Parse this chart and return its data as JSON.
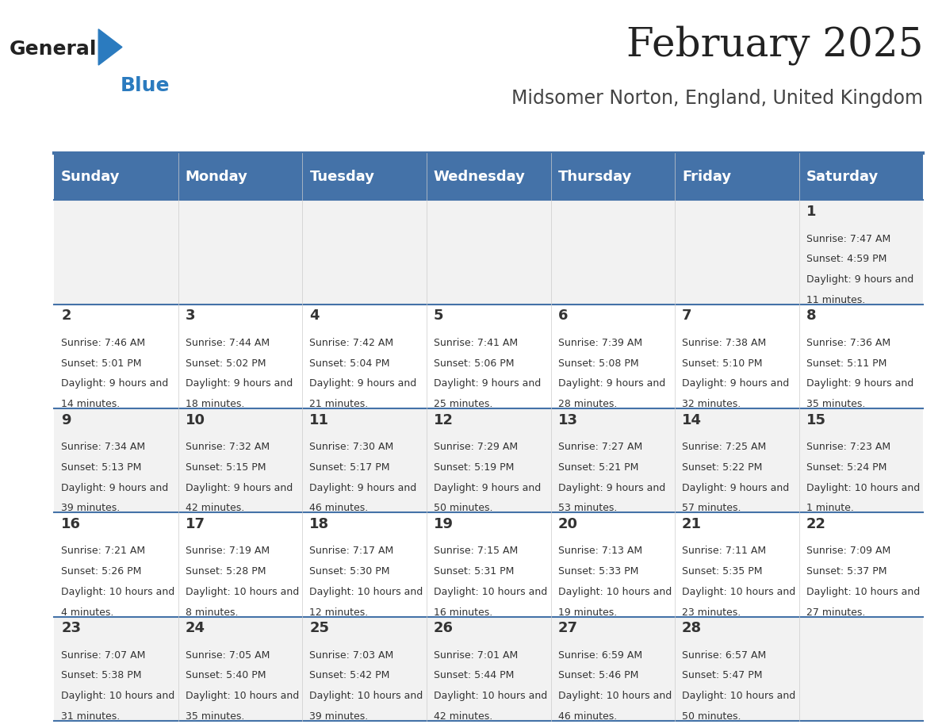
{
  "title": "February 2025",
  "subtitle": "Midsomer Norton, England, United Kingdom",
  "header_color": "#4472a8",
  "header_text_color": "#ffffff",
  "day_names": [
    "Sunday",
    "Monday",
    "Tuesday",
    "Wednesday",
    "Thursday",
    "Friday",
    "Saturday"
  ],
  "row_colors": [
    "#f2f2f2",
    "#ffffff"
  ],
  "divider_color": "#4472a8",
  "text_color": "#333333",
  "title_color": "#222222",
  "subtitle_color": "#444444",
  "logo_general_color": "#222222",
  "logo_blue_color": "#2b7bbf",
  "calendar_data": [
    [
      {
        "day": "",
        "sunrise": "",
        "sunset": "",
        "daylight": ""
      },
      {
        "day": "",
        "sunrise": "",
        "sunset": "",
        "daylight": ""
      },
      {
        "day": "",
        "sunrise": "",
        "sunset": "",
        "daylight": ""
      },
      {
        "day": "",
        "sunrise": "",
        "sunset": "",
        "daylight": ""
      },
      {
        "day": "",
        "sunrise": "",
        "sunset": "",
        "daylight": ""
      },
      {
        "day": "",
        "sunrise": "",
        "sunset": "",
        "daylight": ""
      },
      {
        "day": "1",
        "sunrise": "7:47 AM",
        "sunset": "4:59 PM",
        "daylight": "9 hours and 11 minutes."
      }
    ],
    [
      {
        "day": "2",
        "sunrise": "7:46 AM",
        "sunset": "5:01 PM",
        "daylight": "9 hours and 14 minutes."
      },
      {
        "day": "3",
        "sunrise": "7:44 AM",
        "sunset": "5:02 PM",
        "daylight": "9 hours and 18 minutes."
      },
      {
        "day": "4",
        "sunrise": "7:42 AM",
        "sunset": "5:04 PM",
        "daylight": "9 hours and 21 minutes."
      },
      {
        "day": "5",
        "sunrise": "7:41 AM",
        "sunset": "5:06 PM",
        "daylight": "9 hours and 25 minutes."
      },
      {
        "day": "6",
        "sunrise": "7:39 AM",
        "sunset": "5:08 PM",
        "daylight": "9 hours and 28 minutes."
      },
      {
        "day": "7",
        "sunrise": "7:38 AM",
        "sunset": "5:10 PM",
        "daylight": "9 hours and 32 minutes."
      },
      {
        "day": "8",
        "sunrise": "7:36 AM",
        "sunset": "5:11 PM",
        "daylight": "9 hours and 35 minutes."
      }
    ],
    [
      {
        "day": "9",
        "sunrise": "7:34 AM",
        "sunset": "5:13 PM",
        "daylight": "9 hours and 39 minutes."
      },
      {
        "day": "10",
        "sunrise": "7:32 AM",
        "sunset": "5:15 PM",
        "daylight": "9 hours and 42 minutes."
      },
      {
        "day": "11",
        "sunrise": "7:30 AM",
        "sunset": "5:17 PM",
        "daylight": "9 hours and 46 minutes."
      },
      {
        "day": "12",
        "sunrise": "7:29 AM",
        "sunset": "5:19 PM",
        "daylight": "9 hours and 50 minutes."
      },
      {
        "day": "13",
        "sunrise": "7:27 AM",
        "sunset": "5:21 PM",
        "daylight": "9 hours and 53 minutes."
      },
      {
        "day": "14",
        "sunrise": "7:25 AM",
        "sunset": "5:22 PM",
        "daylight": "9 hours and 57 minutes."
      },
      {
        "day": "15",
        "sunrise": "7:23 AM",
        "sunset": "5:24 PM",
        "daylight": "10 hours and 1 minute."
      }
    ],
    [
      {
        "day": "16",
        "sunrise": "7:21 AM",
        "sunset": "5:26 PM",
        "daylight": "10 hours and 4 minutes."
      },
      {
        "day": "17",
        "sunrise": "7:19 AM",
        "sunset": "5:28 PM",
        "daylight": "10 hours and 8 minutes."
      },
      {
        "day": "18",
        "sunrise": "7:17 AM",
        "sunset": "5:30 PM",
        "daylight": "10 hours and 12 minutes."
      },
      {
        "day": "19",
        "sunrise": "7:15 AM",
        "sunset": "5:31 PM",
        "daylight": "10 hours and 16 minutes."
      },
      {
        "day": "20",
        "sunrise": "7:13 AM",
        "sunset": "5:33 PM",
        "daylight": "10 hours and 19 minutes."
      },
      {
        "day": "21",
        "sunrise": "7:11 AM",
        "sunset": "5:35 PM",
        "daylight": "10 hours and 23 minutes."
      },
      {
        "day": "22",
        "sunrise": "7:09 AM",
        "sunset": "5:37 PM",
        "daylight": "10 hours and 27 minutes."
      }
    ],
    [
      {
        "day": "23",
        "sunrise": "7:07 AM",
        "sunset": "5:38 PM",
        "daylight": "10 hours and 31 minutes."
      },
      {
        "day": "24",
        "sunrise": "7:05 AM",
        "sunset": "5:40 PM",
        "daylight": "10 hours and 35 minutes."
      },
      {
        "day": "25",
        "sunrise": "7:03 AM",
        "sunset": "5:42 PM",
        "daylight": "10 hours and 39 minutes."
      },
      {
        "day": "26",
        "sunrise": "7:01 AM",
        "sunset": "5:44 PM",
        "daylight": "10 hours and 42 minutes."
      },
      {
        "day": "27",
        "sunrise": "6:59 AM",
        "sunset": "5:46 PM",
        "daylight": "10 hours and 46 minutes."
      },
      {
        "day": "28",
        "sunrise": "6:57 AM",
        "sunset": "5:47 PM",
        "daylight": "10 hours and 50 minutes."
      },
      {
        "day": "",
        "sunrise": "",
        "sunset": "",
        "daylight": ""
      }
    ]
  ]
}
